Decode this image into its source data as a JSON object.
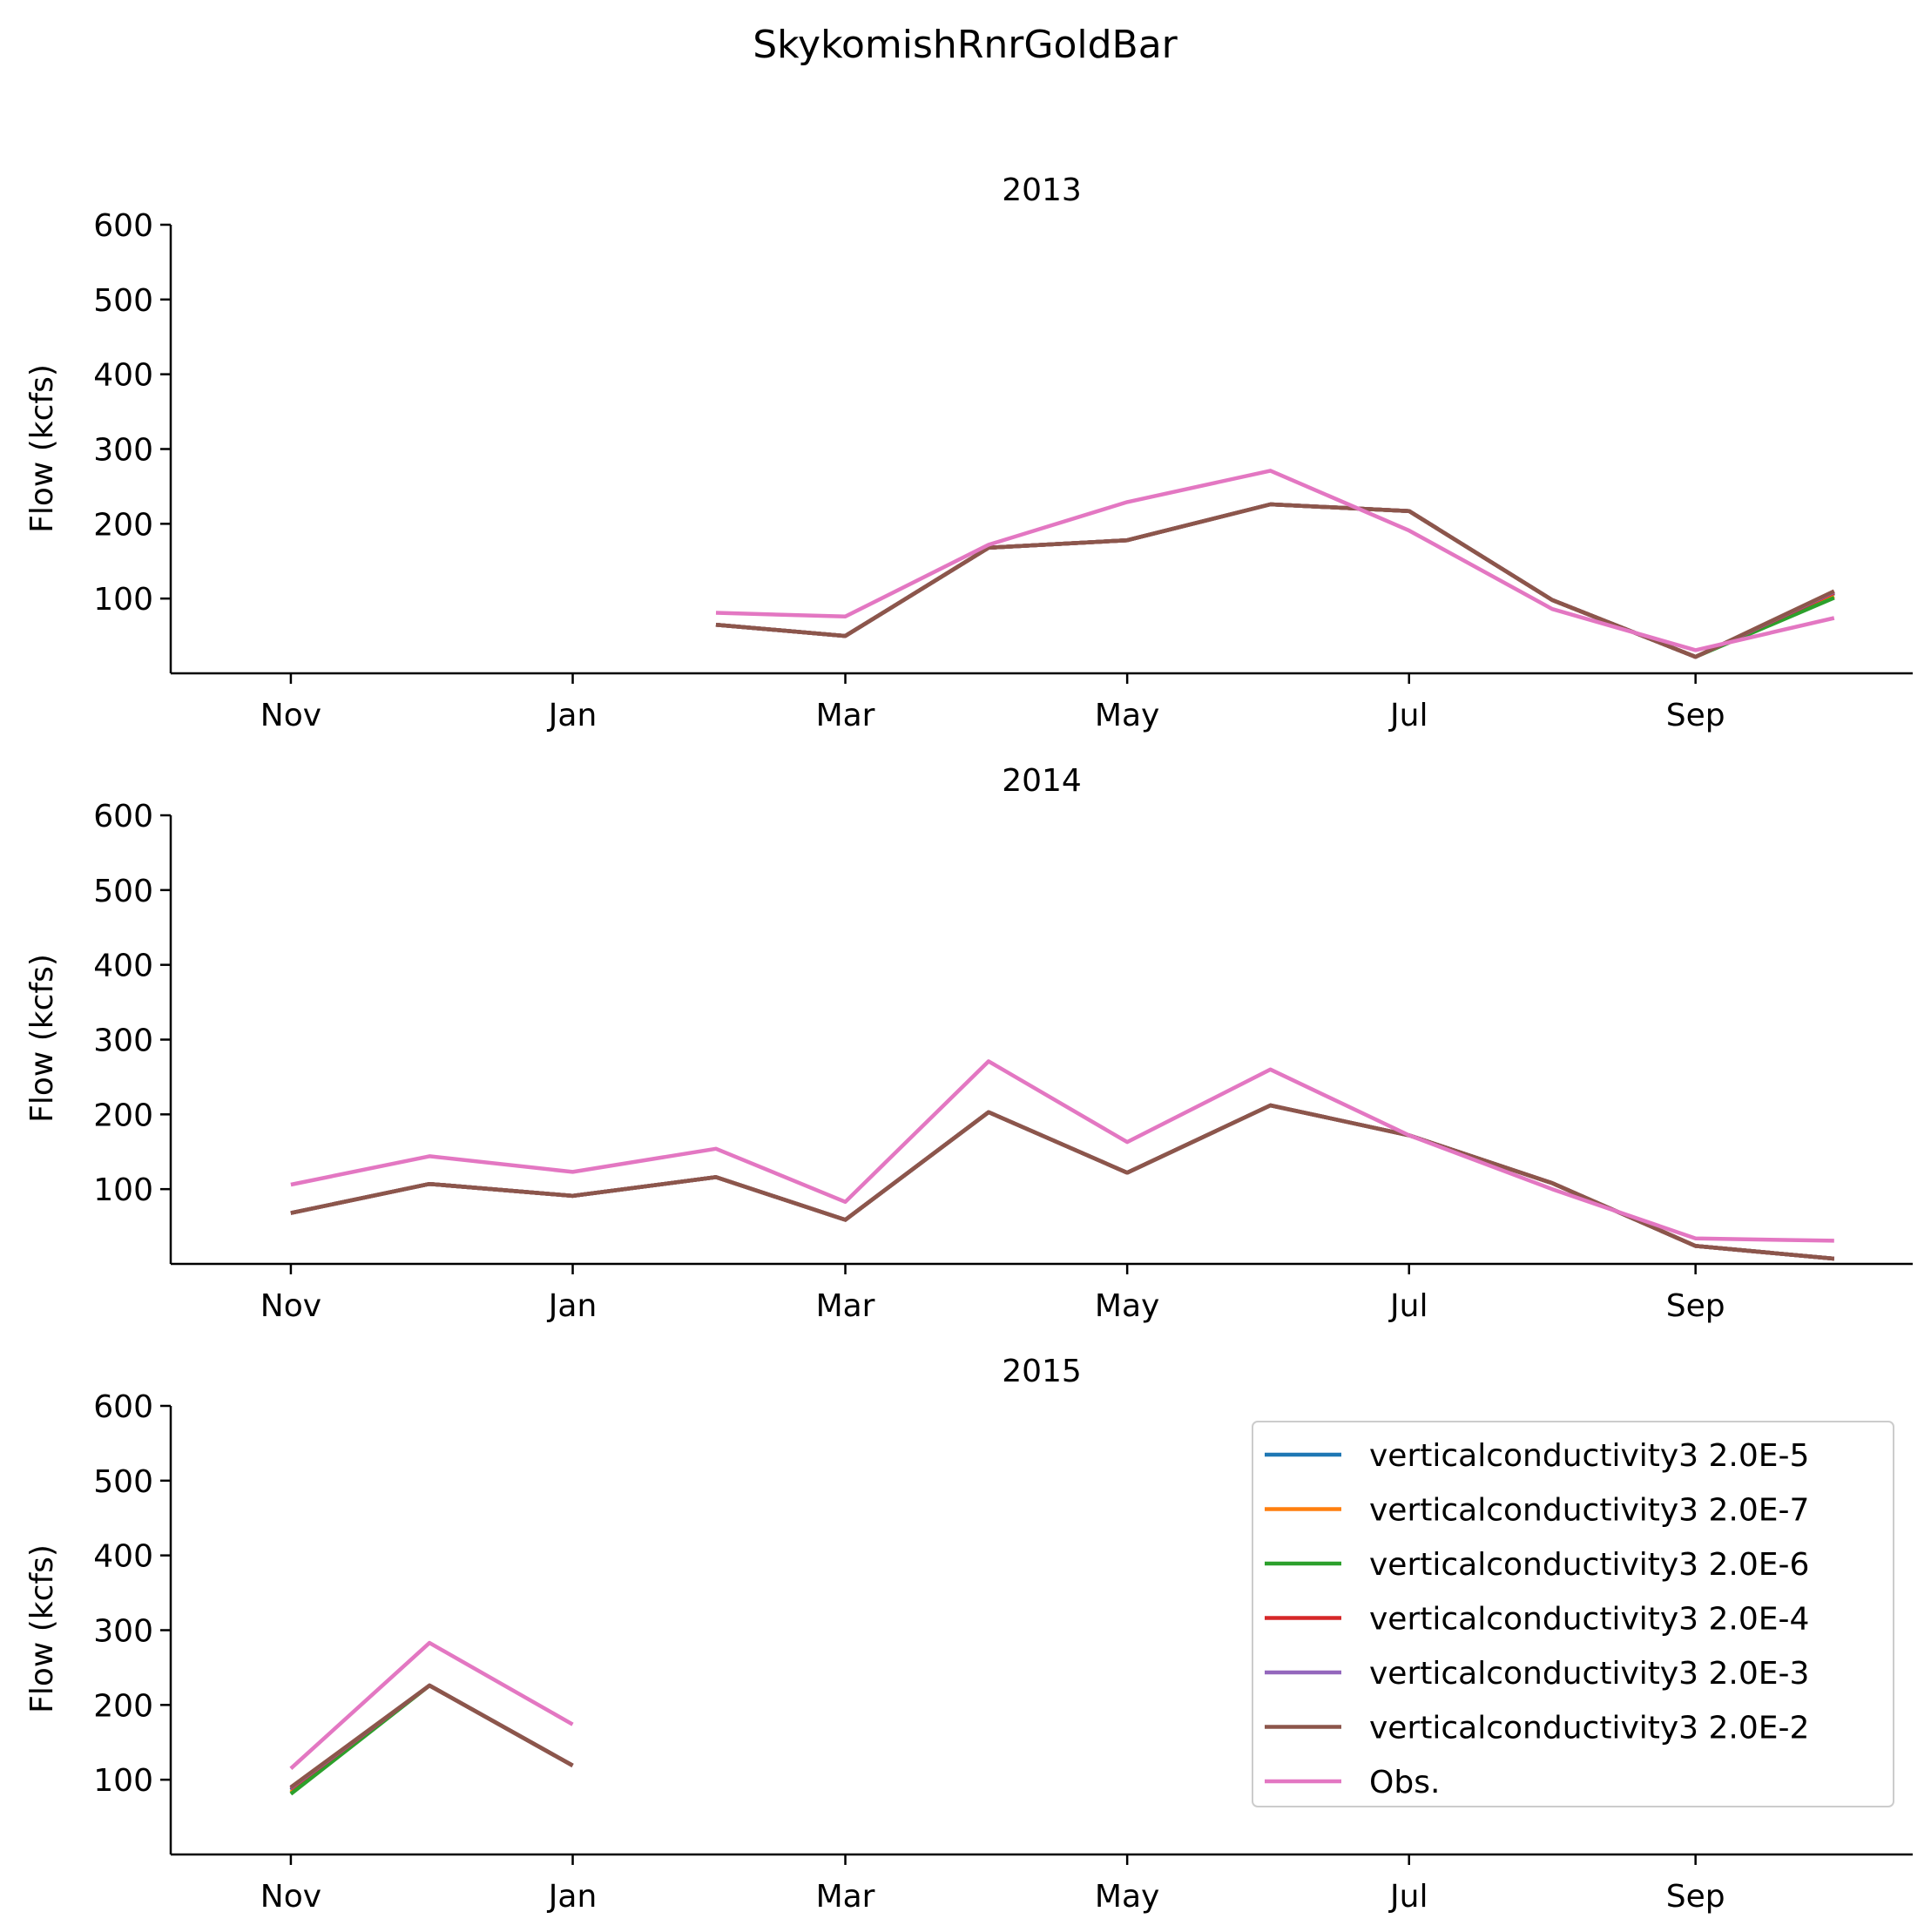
{
  "figure_title": "SkykomishRnrGoldBar",
  "legend": {
    "entries": [
      {
        "label": "verticalconductivity3 2.0E-5",
        "color": "#1f77b4"
      },
      {
        "label": "verticalconductivity3 2.0E-7",
        "color": "#ff7f0e"
      },
      {
        "label": "verticalconductivity3 2.0E-6",
        "color": "#2ca02c"
      },
      {
        "label": "verticalconductivity3 2.0E-4",
        "color": "#d62728"
      },
      {
        "label": "verticalconductivity3 2.0E-3",
        "color": "#9467bd"
      },
      {
        "label": "verticalconductivity3 2.0E-2",
        "color": "#8c564b"
      },
      {
        "label": "Obs.",
        "color": "#e377c2"
      }
    ],
    "placement": "upper right of bottom panel"
  },
  "chart_data": [
    {
      "type": "line",
      "title": "2013",
      "ylabel": "Flow (kcfs)",
      "xlabel": "",
      "x_ticks": [
        "Nov",
        "Jan",
        "Mar",
        "May",
        "Jul",
        "Sep"
      ],
      "x_tick_dates": [
        "2012-11-01",
        "2013-01-01",
        "2013-03-01",
        "2013-05-01",
        "2013-07-01",
        "2013-09-01"
      ],
      "y_ticks": [
        100,
        200,
        300,
        400,
        500,
        600
      ],
      "xlim": [
        "2012-10-06",
        "2013-10-18"
      ],
      "ylim": [
        0,
        600
      ],
      "grid": false,
      "series": [
        {
          "name": "verticalconductivity3 2.0E-5",
          "color": "#1f77b4",
          "x": [
            "2013-02-01",
            "2013-03-01",
            "2013-04-01",
            "2013-05-01",
            "2013-06-01",
            "2013-07-01",
            "2013-08-01",
            "2013-09-01",
            "2013-10-01"
          ],
          "values": [
            65,
            50,
            168,
            178,
            226,
            217,
            98,
            22,
            107
          ]
        },
        {
          "name": "verticalconductivity3 2.0E-7",
          "color": "#ff7f0e",
          "x": [
            "2013-02-01",
            "2013-03-01",
            "2013-04-01",
            "2013-05-01",
            "2013-06-01",
            "2013-07-01",
            "2013-08-01",
            "2013-09-01",
            "2013-10-01"
          ],
          "values": [
            65,
            50,
            168,
            178,
            226,
            217,
            98,
            22,
            103
          ]
        },
        {
          "name": "verticalconductivity3 2.0E-6",
          "color": "#2ca02c",
          "x": [
            "2013-02-01",
            "2013-03-01",
            "2013-04-01",
            "2013-05-01",
            "2013-06-01",
            "2013-07-01",
            "2013-08-01",
            "2013-09-01",
            "2013-10-01"
          ],
          "values": [
            65,
            50,
            168,
            178,
            226,
            217,
            98,
            22,
            101
          ]
        },
        {
          "name": "verticalconductivity3 2.0E-4",
          "color": "#d62728",
          "x": [
            "2013-02-01",
            "2013-03-01",
            "2013-04-01",
            "2013-05-01",
            "2013-06-01",
            "2013-07-01",
            "2013-08-01",
            "2013-09-01",
            "2013-10-01"
          ],
          "values": [
            65,
            50,
            168,
            178,
            226,
            217,
            98,
            22,
            108
          ]
        },
        {
          "name": "verticalconductivity3 2.0E-3",
          "color": "#9467bd",
          "x": [
            "2013-02-01",
            "2013-03-01",
            "2013-04-01",
            "2013-05-01",
            "2013-06-01",
            "2013-07-01",
            "2013-08-01",
            "2013-09-01",
            "2013-10-01"
          ],
          "values": [
            65,
            50,
            168,
            178,
            226,
            217,
            98,
            22,
            109
          ]
        },
        {
          "name": "verticalconductivity3 2.0E-2",
          "color": "#8c564b",
          "x": [
            "2013-02-01",
            "2013-03-01",
            "2013-04-01",
            "2013-05-01",
            "2013-06-01",
            "2013-07-01",
            "2013-08-01",
            "2013-09-01",
            "2013-10-01"
          ],
          "values": [
            65,
            50,
            168,
            178,
            226,
            217,
            98,
            22,
            110
          ]
        },
        {
          "name": "Obs.",
          "color": "#e377c2",
          "x": [
            "2013-02-01",
            "2013-03-01",
            "2013-04-01",
            "2013-05-01",
            "2013-06-01",
            "2013-07-01",
            "2013-08-01",
            "2013-09-01",
            "2013-10-01"
          ],
          "values": [
            81,
            76,
            172,
            229,
            271,
            191,
            86,
            31,
            74
          ]
        }
      ]
    },
    {
      "type": "line",
      "title": "2014",
      "ylabel": "Flow (kcfs)",
      "xlabel": "",
      "x_ticks": [
        "Nov",
        "Jan",
        "Mar",
        "May",
        "Jul",
        "Sep"
      ],
      "x_tick_dates": [
        "2013-11-01",
        "2014-01-01",
        "2014-03-01",
        "2014-05-01",
        "2014-07-01",
        "2014-09-01"
      ],
      "y_ticks": [
        100,
        200,
        300,
        400,
        500,
        600
      ],
      "xlim": [
        "2013-10-06",
        "2014-10-18"
      ],
      "ylim": [
        0,
        600
      ],
      "grid": false,
      "series": [
        {
          "name": "verticalconductivity3 2.0E-5",
          "color": "#1f77b4",
          "x": [
            "2013-11-01",
            "2013-12-01",
            "2014-01-01",
            "2014-02-01",
            "2014-03-01",
            "2014-04-01",
            "2014-05-01",
            "2014-06-01",
            "2014-07-01",
            "2014-08-01",
            "2014-09-01",
            "2014-10-01"
          ],
          "values": [
            68,
            107,
            91,
            116,
            59,
            203,
            122,
            212,
            172,
            108,
            24,
            7
          ]
        },
        {
          "name": "verticalconductivity3 2.0E-7",
          "color": "#ff7f0e",
          "x": [
            "2013-11-01",
            "2013-12-01",
            "2014-01-01",
            "2014-02-01",
            "2014-03-01",
            "2014-04-01",
            "2014-05-01",
            "2014-06-01",
            "2014-07-01",
            "2014-08-01",
            "2014-09-01",
            "2014-10-01"
          ],
          "values": [
            68,
            107,
            91,
            116,
            59,
            203,
            122,
            212,
            172,
            108,
            24,
            7
          ]
        },
        {
          "name": "verticalconductivity3 2.0E-6",
          "color": "#2ca02c",
          "x": [
            "2013-11-01",
            "2013-12-01",
            "2014-01-01",
            "2014-02-01",
            "2014-03-01",
            "2014-04-01",
            "2014-05-01",
            "2014-06-01",
            "2014-07-01",
            "2014-08-01",
            "2014-09-01",
            "2014-10-01"
          ],
          "values": [
            68,
            107,
            91,
            116,
            59,
            203,
            122,
            212,
            172,
            108,
            24,
            7
          ]
        },
        {
          "name": "verticalconductivity3 2.0E-4",
          "color": "#d62728",
          "x": [
            "2013-11-01",
            "2013-12-01",
            "2014-01-01",
            "2014-02-01",
            "2014-03-01",
            "2014-04-01",
            "2014-05-01",
            "2014-06-01",
            "2014-07-01",
            "2014-08-01",
            "2014-09-01",
            "2014-10-01"
          ],
          "values": [
            68,
            107,
            91,
            116,
            59,
            203,
            122,
            212,
            172,
            108,
            24,
            7
          ]
        },
        {
          "name": "verticalconductivity3 2.0E-3",
          "color": "#9467bd",
          "x": [
            "2013-11-01",
            "2013-12-01",
            "2014-01-01",
            "2014-02-01",
            "2014-03-01",
            "2014-04-01",
            "2014-05-01",
            "2014-06-01",
            "2014-07-01",
            "2014-08-01",
            "2014-09-01",
            "2014-10-01"
          ],
          "values": [
            68,
            107,
            91,
            116,
            59,
            203,
            122,
            212,
            172,
            108,
            24,
            7
          ]
        },
        {
          "name": "verticalconductivity3 2.0E-2",
          "color": "#8c564b",
          "x": [
            "2013-11-01",
            "2013-12-01",
            "2014-01-01",
            "2014-02-01",
            "2014-03-01",
            "2014-04-01",
            "2014-05-01",
            "2014-06-01",
            "2014-07-01",
            "2014-08-01",
            "2014-09-01",
            "2014-10-01"
          ],
          "values": [
            68,
            107,
            91,
            116,
            59,
            203,
            122,
            212,
            172,
            108,
            24,
            7
          ]
        },
        {
          "name": "Obs.",
          "color": "#e377c2",
          "x": [
            "2013-11-01",
            "2013-12-01",
            "2014-01-01",
            "2014-02-01",
            "2014-03-01",
            "2014-04-01",
            "2014-05-01",
            "2014-06-01",
            "2014-07-01",
            "2014-08-01",
            "2014-09-01",
            "2014-10-01"
          ],
          "values": [
            106,
            144,
            123,
            154,
            83,
            271,
            163,
            260,
            172,
            100,
            34,
            31
          ]
        }
      ]
    },
    {
      "type": "line",
      "title": "2015",
      "ylabel": "Flow (kcfs)",
      "xlabel": "",
      "x_ticks": [
        "Nov",
        "Jan",
        "Mar",
        "May",
        "Jul",
        "Sep"
      ],
      "x_tick_dates": [
        "2014-11-01",
        "2015-01-01",
        "2015-03-01",
        "2015-05-01",
        "2015-07-01",
        "2015-09-01"
      ],
      "y_ticks": [
        100,
        200,
        300,
        400,
        500,
        600
      ],
      "xlim": [
        "2014-10-06",
        "2015-10-18"
      ],
      "ylim": [
        0,
        600
      ],
      "grid": false,
      "series": [
        {
          "name": "verticalconductivity3 2.0E-5",
          "color": "#1f77b4",
          "x": [
            "2014-11-01",
            "2014-12-01",
            "2015-01-01"
          ],
          "values": [
            86,
            226,
            119
          ]
        },
        {
          "name": "verticalconductivity3 2.0E-7",
          "color": "#ff7f0e",
          "x": [
            "2014-11-01",
            "2014-12-01",
            "2015-01-01"
          ],
          "values": [
            83,
            226,
            119
          ]
        },
        {
          "name": "verticalconductivity3 2.0E-6",
          "color": "#2ca02c",
          "x": [
            "2014-11-01",
            "2014-12-01",
            "2015-01-01"
          ],
          "values": [
            81,
            226,
            119
          ]
        },
        {
          "name": "verticalconductivity3 2.0E-4",
          "color": "#d62728",
          "x": [
            "2014-11-01",
            "2014-12-01",
            "2015-01-01"
          ],
          "values": [
            88,
            226,
            119
          ]
        },
        {
          "name": "verticalconductivity3 2.0E-3",
          "color": "#9467bd",
          "x": [
            "2014-11-01",
            "2014-12-01",
            "2015-01-01"
          ],
          "values": [
            89,
            226,
            119
          ]
        },
        {
          "name": "verticalconductivity3 2.0E-2",
          "color": "#8c564b",
          "x": [
            "2014-11-01",
            "2014-12-01",
            "2015-01-01"
          ],
          "values": [
            90,
            226,
            119
          ]
        },
        {
          "name": "Obs.",
          "color": "#e377c2",
          "x": [
            "2014-11-01",
            "2014-12-01",
            "2015-01-01"
          ],
          "values": [
            115,
            283,
            174
          ]
        }
      ]
    }
  ]
}
